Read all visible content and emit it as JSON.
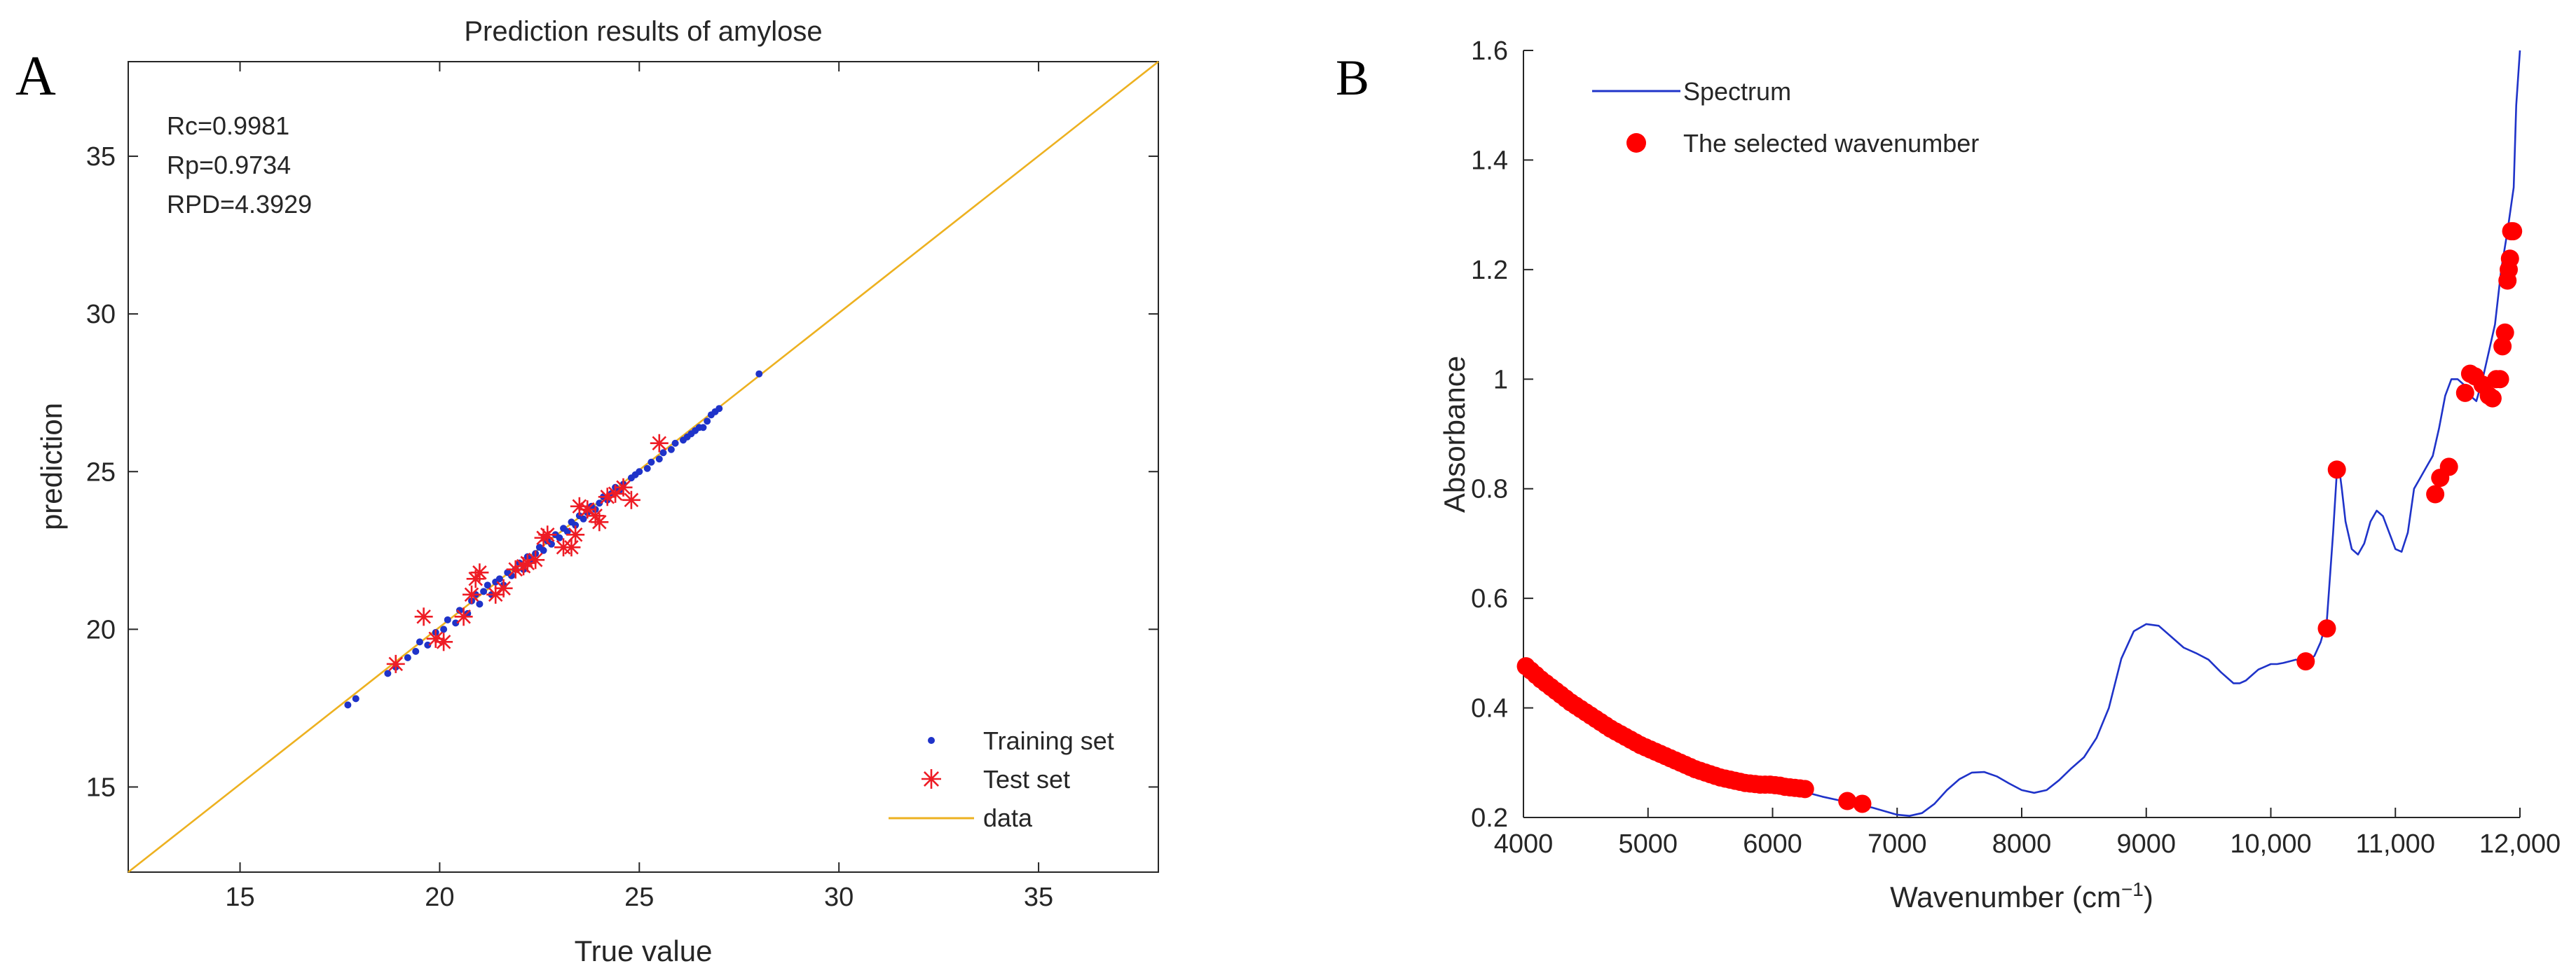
{
  "panels": [
    {
      "letter": "A"
    },
    {
      "letter": "B"
    }
  ],
  "chart_data": [
    {
      "type": "scatter",
      "title": "Prediction results of amylose",
      "xlabel": "True value",
      "ylabel": "prediction",
      "xlim": [
        12.2,
        38
      ],
      "ylim": [
        12.3,
        38
      ],
      "xticks": [
        15,
        20,
        25,
        30,
        35
      ],
      "yticks": [
        15,
        20,
        25,
        30,
        35
      ],
      "annotations": [
        "Rc=0.9981",
        "Rp=0.9734",
        "RPD=4.3929"
      ],
      "legend": {
        "position": "bottom-right",
        "entries": [
          "Training set",
          "Test set",
          "data"
        ]
      },
      "colors": {
        "training": "#1f33c9",
        "test": "#ee1c25",
        "line": "#edb120",
        "axis": "#262626"
      },
      "series": [
        {
          "name": "Training set",
          "marker": "dot",
          "points": [
            [
              17.7,
              17.6
            ],
            [
              17.9,
              17.8
            ],
            [
              18.7,
              18.6
            ],
            [
              18.9,
              18.8
            ],
            [
              19.2,
              19.1
            ],
            [
              19.4,
              19.3
            ],
            [
              19.5,
              19.6
            ],
            [
              19.7,
              19.5
            ],
            [
              19.9,
              19.9
            ],
            [
              20.1,
              20.0
            ],
            [
              20.2,
              20.3
            ],
            [
              20.4,
              20.2
            ],
            [
              20.5,
              20.6
            ],
            [
              20.7,
              20.5
            ],
            [
              20.8,
              20.9
            ],
            [
              20.9,
              21.1
            ],
            [
              21.0,
              20.8
            ],
            [
              21.1,
              21.2
            ],
            [
              21.2,
              21.4
            ],
            [
              21.3,
              21.1
            ],
            [
              21.4,
              21.5
            ],
            [
              21.5,
              21.6
            ],
            [
              21.6,
              21.4
            ],
            [
              21.7,
              21.8
            ],
            [
              21.8,
              21.7
            ],
            [
              21.9,
              21.9
            ],
            [
              22.0,
              22.1
            ],
            [
              22.1,
              21.9
            ],
            [
              22.2,
              22.3
            ],
            [
              22.3,
              22.2
            ],
            [
              22.4,
              22.4
            ],
            [
              22.5,
              22.6
            ],
            [
              22.6,
              22.5
            ],
            [
              22.7,
              22.8
            ],
            [
              22.8,
              22.7
            ],
            [
              22.9,
              23.0
            ],
            [
              23.0,
              22.9
            ],
            [
              23.1,
              23.2
            ],
            [
              23.2,
              23.1
            ],
            [
              23.3,
              23.4
            ],
            [
              23.4,
              23.3
            ],
            [
              23.5,
              23.6
            ],
            [
              23.6,
              23.5
            ],
            [
              23.7,
              23.7
            ],
            [
              23.8,
              23.9
            ],
            [
              23.9,
              23.8
            ],
            [
              24.0,
              24.0
            ],
            [
              24.1,
              24.2
            ],
            [
              24.2,
              24.1
            ],
            [
              24.3,
              24.3
            ],
            [
              24.4,
              24.5
            ],
            [
              24.5,
              24.4
            ],
            [
              24.6,
              24.6
            ],
            [
              24.8,
              24.8
            ],
            [
              24.9,
              24.9
            ],
            [
              25.0,
              25.0
            ],
            [
              25.2,
              25.1
            ],
            [
              25.3,
              25.3
            ],
            [
              25.5,
              25.4
            ],
            [
              25.6,
              25.6
            ],
            [
              25.8,
              25.7
            ],
            [
              25.9,
              25.9
            ],
            [
              26.1,
              26.0
            ],
            [
              26.2,
              26.1
            ],
            [
              26.3,
              26.2
            ],
            [
              26.4,
              26.3
            ],
            [
              26.5,
              26.4
            ],
            [
              26.6,
              26.4
            ],
            [
              26.7,
              26.6
            ],
            [
              26.8,
              26.8
            ],
            [
              26.9,
              26.9
            ],
            [
              27.0,
              27.0
            ],
            [
              28.0,
              28.1
            ]
          ]
        },
        {
          "name": "Test set",
          "marker": "asterisk",
          "points": [
            [
              18.9,
              18.9
            ],
            [
              19.6,
              20.4
            ],
            [
              19.9,
              19.7
            ],
            [
              20.1,
              19.6
            ],
            [
              20.6,
              20.4
            ],
            [
              20.8,
              21.1
            ],
            [
              20.9,
              21.6
            ],
            [
              21.0,
              21.8
            ],
            [
              21.4,
              21.1
            ],
            [
              21.6,
              21.3
            ],
            [
              21.9,
              21.9
            ],
            [
              22.1,
              22.0
            ],
            [
              22.2,
              22.1
            ],
            [
              22.4,
              22.2
            ],
            [
              22.6,
              22.9
            ],
            [
              22.7,
              23.0
            ],
            [
              23.1,
              22.6
            ],
            [
              23.3,
              22.6
            ],
            [
              23.4,
              23.0
            ],
            [
              23.5,
              23.9
            ],
            [
              23.7,
              23.8
            ],
            [
              23.9,
              23.6
            ],
            [
              24.0,
              23.4
            ],
            [
              24.2,
              24.2
            ],
            [
              24.4,
              24.3
            ],
            [
              24.6,
              24.5
            ],
            [
              24.8,
              24.1
            ],
            [
              25.5,
              25.9
            ]
          ]
        },
        {
          "name": "data",
          "marker": "line",
          "points": [
            [
              12.2,
              12.3
            ],
            [
              38.0,
              38.0
            ]
          ]
        }
      ]
    },
    {
      "type": "line",
      "xlabel": "Wavenumber (cm−1)",
      "xlabel_main": "Wavenumber (cm",
      "xlabel_sup": "−1",
      "xlabel_close": ")",
      "ylabel": "Absorbance",
      "xlim": [
        4000,
        12000
      ],
      "ylim": [
        0.2,
        1.6
      ],
      "xticks": [
        4000,
        5000,
        6000,
        7000,
        8000,
        9000,
        10000,
        11000,
        12000
      ],
      "xtick_labels": [
        "4000",
        "5000",
        "6000",
        "7000",
        "8000",
        "9000",
        "10,000",
        "11,000",
        "12,000"
      ],
      "yticks": [
        0.2,
        0.4,
        0.6,
        0.8,
        1.0,
        1.2,
        1.4,
        1.6
      ],
      "ytick_labels": [
        "0.2",
        "0.4",
        "0.6",
        "0.8",
        "1",
        "1.2",
        "1.4",
        "1.6"
      ],
      "legend": {
        "position": "top-left",
        "entries": [
          "Spectrum",
          "The selected wavenumber"
        ]
      },
      "colors": {
        "spectrum": "#1f33c9",
        "selected": "#ff0000",
        "axis": "#262626"
      },
      "series": [
        {
          "name": "Spectrum",
          "x": [
            4000,
            4200,
            4400,
            4600,
            4800,
            5000,
            5200,
            5400,
            5600,
            5800,
            6000,
            6200,
            6400,
            6600,
            6800,
            7000,
            7100,
            7200,
            7300,
            7400,
            7500,
            7600,
            7700,
            7800,
            7900,
            8000,
            8100,
            8200,
            8300,
            8400,
            8500,
            8600,
            8700,
            8800,
            8900,
            9000,
            9100,
            9200,
            9300,
            9400,
            9500,
            9600,
            9700,
            9750,
            9800,
            9850,
            9900,
            9950,
            10000,
            10050,
            10100,
            10150,
            10200,
            10250,
            10300,
            10350,
            10400,
            10450,
            10500,
            10530,
            10550,
            10570,
            10600,
            10650,
            10700,
            10750,
            10800,
            10850,
            10900,
            10950,
            11000,
            11050,
            11100,
            11150,
            11200,
            11250,
            11300,
            11350,
            11400,
            11450,
            11500,
            11550,
            11600,
            11650,
            11700,
            11750,
            11800,
            11850,
            11900,
            11950,
            11970,
            12000
          ],
          "y": [
            0.478,
            0.44,
            0.405,
            0.375,
            0.35,
            0.328,
            0.308,
            0.29,
            0.275,
            0.263,
            0.26,
            0.25,
            0.238,
            0.228,
            0.218,
            0.205,
            0.203,
            0.208,
            0.225,
            0.25,
            0.27,
            0.282,
            0.283,
            0.275,
            0.262,
            0.25,
            0.245,
            0.25,
            0.268,
            0.29,
            0.31,
            0.345,
            0.4,
            0.49,
            0.54,
            0.553,
            0.55,
            0.53,
            0.51,
            0.5,
            0.488,
            0.465,
            0.445,
            0.445,
            0.45,
            0.46,
            0.47,
            0.475,
            0.48,
            0.48,
            0.482,
            0.485,
            0.488,
            0.486,
            0.485,
            0.495,
            0.52,
            0.56,
            0.72,
            0.83,
            0.835,
            0.8,
            0.74,
            0.69,
            0.68,
            0.7,
            0.74,
            0.76,
            0.75,
            0.72,
            0.69,
            0.685,
            0.72,
            0.8,
            0.82,
            0.84,
            0.86,
            0.91,
            0.97,
            1.0,
            1.0,
            0.99,
            0.97,
            0.96,
            1.0,
            1.05,
            1.1,
            1.2,
            1.27,
            1.35,
            1.5,
            1.6
          ]
        },
        {
          "name": "The selected wavenumber",
          "x": [
            4020,
            4060,
            4100,
            4140,
            4180,
            4220,
            4260,
            4300,
            4340,
            4380,
            4420,
            4460,
            4500,
            4540,
            4580,
            4620,
            4660,
            4700,
            4740,
            4780,
            4820,
            4860,
            4900,
            4940,
            4980,
            5020,
            5060,
            5100,
            5140,
            5180,
            5220,
            5260,
            5300,
            5340,
            5380,
            5420,
            5460,
            5500,
            5540,
            5580,
            5620,
            5660,
            5700,
            5740,
            5780,
            5820,
            5860,
            5900,
            5940,
            5980,
            6020,
            6060,
            6100,
            6140,
            6180,
            6220,
            6260,
            6600,
            6720,
            10280,
            10450,
            10530,
            11320,
            11360,
            11430,
            11560,
            11600,
            11640,
            11700,
            11750,
            11780,
            11810,
            11840,
            11860,
            11880,
            11900,
            11910,
            11920,
            11930,
            11945
          ],
          "y": [
            0.476,
            0.468,
            0.46,
            0.452,
            0.445,
            0.438,
            0.431,
            0.424,
            0.417,
            0.41,
            0.404,
            0.398,
            0.392,
            0.386,
            0.38,
            0.374,
            0.368,
            0.362,
            0.357,
            0.352,
            0.347,
            0.342,
            0.337,
            0.332,
            0.328,
            0.324,
            0.32,
            0.316,
            0.312,
            0.308,
            0.304,
            0.3,
            0.296,
            0.292,
            0.288,
            0.285,
            0.282,
            0.279,
            0.276,
            0.273,
            0.271,
            0.269,
            0.267,
            0.265,
            0.263,
            0.262,
            0.261,
            0.26,
            0.26,
            0.26,
            0.259,
            0.258,
            0.256,
            0.255,
            0.254,
            0.253,
            0.252,
            0.23,
            0.225,
            0.485,
            0.545,
            0.835,
            0.79,
            0.82,
            0.84,
            0.975,
            1.01,
            1.005,
            0.99,
            0.97,
            0.965,
            1.0,
            1.0,
            1.06,
            1.085,
            1.18,
            1.2,
            1.22,
            1.27,
            1.27
          ]
        }
      ]
    }
  ]
}
